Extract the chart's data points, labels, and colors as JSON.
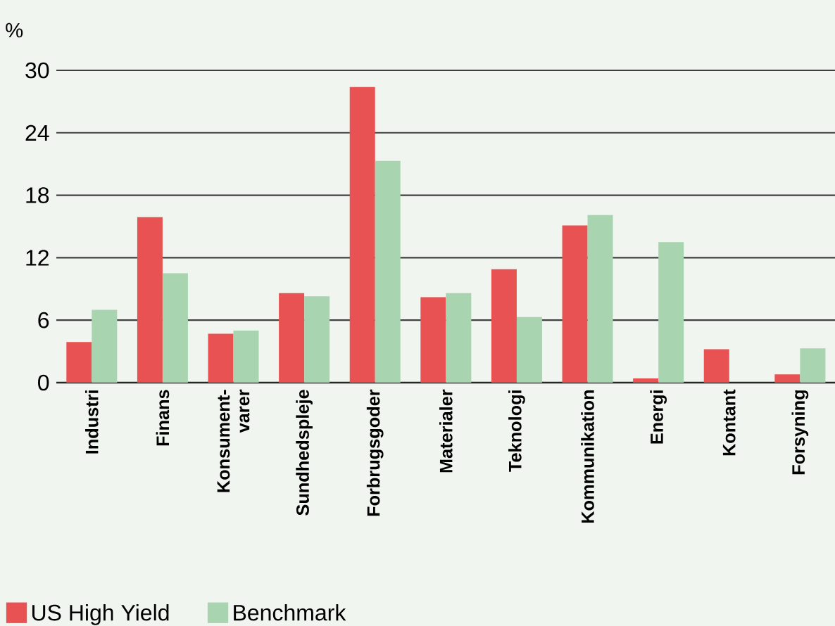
{
  "chart_data": {
    "type": "bar",
    "ylabel": "%",
    "categories": [
      "Industri",
      "Finans",
      "Konsument-varer",
      "Sundhedspleje",
      "Forbrugsgoder",
      "Materialer",
      "Teknologi",
      "Kommunikation",
      "Energi",
      "Kontant",
      "Forsyning"
    ],
    "series": [
      {
        "name": "US High Yield",
        "color": "#e85252",
        "values": [
          3.9,
          15.9,
          4.7,
          8.6,
          28.4,
          8.2,
          10.9,
          15.1,
          0.4,
          3.2,
          0.8
        ]
      },
      {
        "name": "Benchmark",
        "color": "#a8d4b0",
        "values": [
          7.0,
          10.5,
          5.0,
          8.3,
          21.3,
          8.6,
          6.3,
          16.1,
          13.5,
          0,
          3.3
        ]
      }
    ],
    "ylim": [
      0,
      30
    ],
    "yticks": [
      0,
      6,
      12,
      18,
      24,
      30
    ],
    "grid": "y",
    "legend": "bottom left"
  }
}
